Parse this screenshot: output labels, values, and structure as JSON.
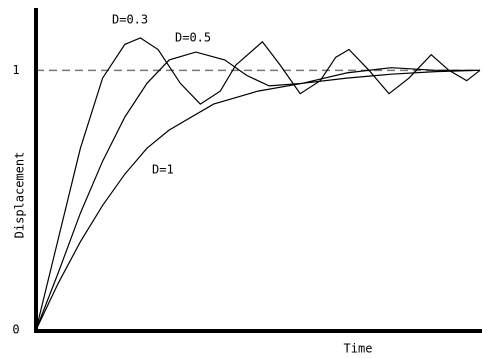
{
  "chart_data": {
    "type": "line",
    "x_label": "Time",
    "y_label": "Displacement",
    "xlim": [
      0,
      20
    ],
    "ylim": [
      0,
      1.24
    ],
    "yticks": [
      0,
      1
    ],
    "reference_line": 1,
    "series": [
      {
        "name": "D=0.3",
        "color": "#000000",
        "x": [
          0,
          1,
          2,
          3,
          4,
          4.7,
          5.5,
          6.5,
          7.4,
          8.3,
          9,
          10.2,
          11,
          11.9,
          12.8,
          13.5,
          14.1,
          15,
          15.9,
          16.8,
          17.8,
          18.6,
          19.4,
          20
        ],
        "values": [
          0,
          0.35,
          0.7,
          0.97,
          1.1,
          1.125,
          1.08,
          0.95,
          0.87,
          0.92,
          1.02,
          1.11,
          1.02,
          0.91,
          0.96,
          1.05,
          1.08,
          1.0,
          0.91,
          0.97,
          1.06,
          1.0,
          0.96,
          1.0
        ]
      },
      {
        "name": "D=0.5",
        "color": "#000000",
        "x": [
          0,
          1,
          2,
          3,
          4,
          5,
          6,
          7.2,
          8.5,
          9.5,
          10.5,
          12,
          14,
          16,
          18,
          20
        ],
        "values": [
          0,
          0.22,
          0.45,
          0.65,
          0.82,
          0.95,
          1.04,
          1.07,
          1.04,
          0.98,
          0.94,
          0.95,
          0.99,
          1.01,
          1.0,
          1.0
        ]
      },
      {
        "name": "D=1",
        "color": "#000000",
        "x": [
          0,
          1,
          2,
          3,
          4,
          5,
          6,
          8,
          10,
          12,
          14,
          16,
          18,
          20
        ],
        "values": [
          0,
          0.18,
          0.34,
          0.48,
          0.6,
          0.7,
          0.77,
          0.87,
          0.92,
          0.95,
          0.97,
          0.985,
          0.995,
          1.0
        ]
      }
    ]
  }
}
